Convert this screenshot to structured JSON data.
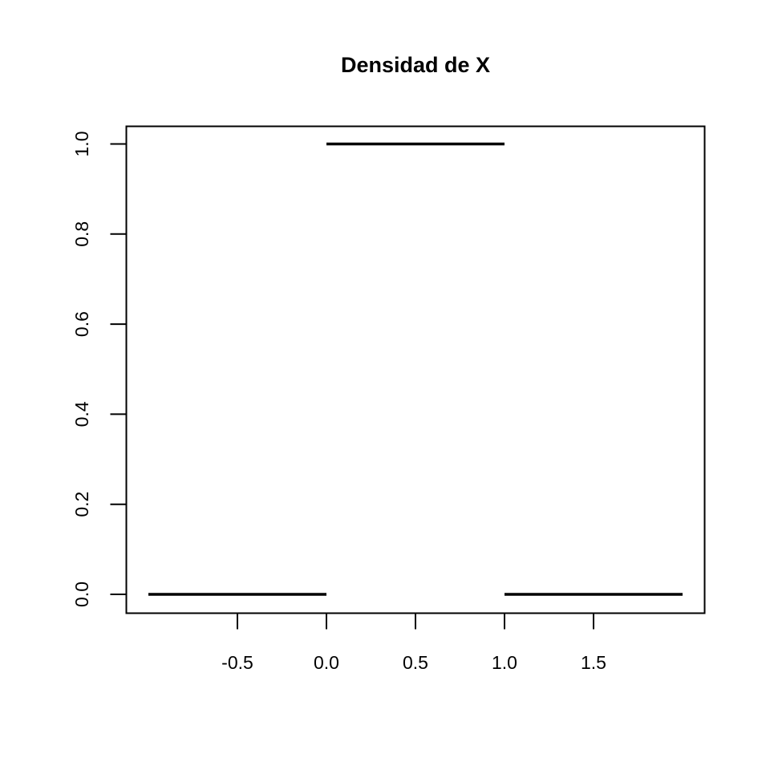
{
  "chart_data": {
    "type": "line",
    "title": "Densidad de X",
    "xlabel": "",
    "ylabel": "",
    "xlim": [
      -1.0,
      2.0
    ],
    "ylim": [
      0.0,
      1.0
    ],
    "x_ticks": [
      -0.5,
      0.0,
      0.5,
      1.0,
      1.5
    ],
    "x_tick_labels": [
      "-0.5",
      "0.0",
      "0.5",
      "1.0",
      "1.5"
    ],
    "y_ticks": [
      0.0,
      0.2,
      0.4,
      0.6,
      0.8,
      1.0
    ],
    "y_tick_labels": [
      "0.0",
      "0.2",
      "0.4",
      "0.6",
      "0.8",
      "1.0"
    ],
    "grid": false,
    "line_color": "#000000",
    "segments": [
      {
        "x": [
          -1.0,
          0.0
        ],
        "y": [
          0.0,
          0.0
        ]
      },
      {
        "x": [
          0.0,
          1.0
        ],
        "y": [
          1.0,
          1.0
        ]
      },
      {
        "x": [
          1.0,
          2.0
        ],
        "y": [
          0.0,
          0.0
        ]
      }
    ]
  }
}
